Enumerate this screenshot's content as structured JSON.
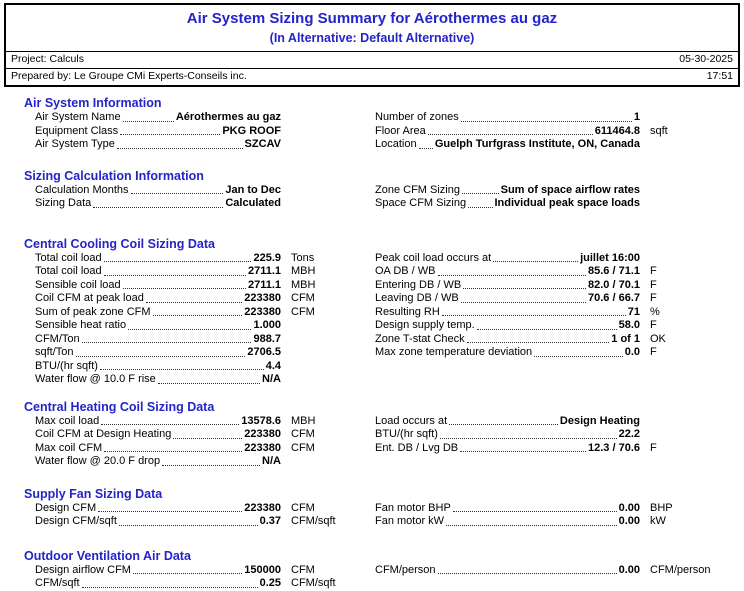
{
  "report": {
    "title": "Air System Sizing Summary for Aérothermes au gaz",
    "subtitle": "(In Alternative: Default Alternative)",
    "project": "Project: Calculs",
    "date": "05-30-2025",
    "prepared_by": "Prepared by: Le Groupe CMi Experts-Conseils inc.",
    "time": "17:51"
  },
  "colors": {
    "accent_blue": "#2424C8",
    "text": "#000000",
    "background": "#FFFFFF"
  },
  "sections": [
    {
      "id": "air-system-information",
      "title": "Air System Information",
      "left": [
        {
          "label": "Air System Name",
          "value": "Aérothermes au gaz",
          "unit": ""
        },
        {
          "label": "Equipment Class",
          "value": "PKG ROOF",
          "unit": ""
        },
        {
          "label": "Air System Type",
          "value": "SZCAV",
          "unit": ""
        }
      ],
      "right": [
        {
          "label": "Number of zones",
          "value": "1",
          "unit": ""
        },
        {
          "label": "Floor Area",
          "value": "611464.8",
          "unit": "sqft"
        },
        {
          "label": "Location",
          "value": "Guelph Turfgrass Institute, ON, Canada",
          "unit": ""
        }
      ]
    },
    {
      "id": "sizing-calculation-information",
      "title": "Sizing Calculation Information",
      "left": [
        {
          "label": "Calculation Months",
          "value": "Jan to Dec",
          "unit": ""
        },
        {
          "label": "Sizing Data",
          "value": "Calculated",
          "unit": ""
        }
      ],
      "right": [
        {
          "label": "Zone CFM Sizing",
          "value": "Sum of space airflow rates",
          "unit": ""
        },
        {
          "label": "Space CFM Sizing",
          "value": "Individual peak space loads",
          "unit": ""
        }
      ]
    },
    {
      "id": "central-cooling-coil-sizing-data",
      "title": "Central Cooling Coil Sizing Data",
      "left": [
        {
          "label": "Total coil load",
          "value": "225.9",
          "unit": "Tons"
        },
        {
          "label": "Total coil load",
          "value": "2711.1",
          "unit": "MBH"
        },
        {
          "label": "Sensible coil load",
          "value": "2711.1",
          "unit": "MBH"
        },
        {
          "label": "Coil CFM at peak load",
          "value": "223380",
          "unit": "CFM"
        },
        {
          "label": "Sum of peak zone CFM",
          "value": "223380",
          "unit": "CFM"
        },
        {
          "label": "Sensible heat ratio",
          "value": "1.000",
          "unit": ""
        },
        {
          "label": "CFM/Ton",
          "value": "988.7",
          "unit": ""
        },
        {
          "label": "sqft/Ton",
          "value": "2706.5",
          "unit": ""
        },
        {
          "label": "BTU/(hr sqft)",
          "value": "4.4",
          "unit": ""
        },
        {
          "label": "Water flow @ 10.0 F rise",
          "value": "N/A",
          "unit": ""
        }
      ],
      "right": [
        {
          "label": "Peak coil load occurs at",
          "value": "juillet 16:00",
          "unit": ""
        },
        {
          "label": "OA DB / WB",
          "value": "85.6 / 71.1",
          "unit": "F"
        },
        {
          "label": "Entering DB / WB",
          "value": "82.0 / 70.1",
          "unit": "F"
        },
        {
          "label": "Leaving DB / WB",
          "value": "70.6 / 66.7",
          "unit": "F"
        },
        {
          "label": "Resulting RH",
          "value": "71",
          "unit": "%"
        },
        {
          "label": "Design supply temp.",
          "value": "58.0",
          "unit": "F"
        },
        {
          "label": "Zone T-stat Check",
          "value": "1 of 1",
          "unit": "OK"
        },
        {
          "label": "Max zone temperature deviation",
          "value": "0.0",
          "unit": "F"
        }
      ]
    },
    {
      "id": "central-heating-coil-sizing-data",
      "title": "Central Heating Coil Sizing Data",
      "left": [
        {
          "label": "Max coil load",
          "value": "13578.6",
          "unit": "MBH"
        },
        {
          "label": "Coil CFM at Design Heating",
          "value": "223380",
          "unit": "CFM"
        },
        {
          "label": "Max coil CFM",
          "value": "223380",
          "unit": "CFM"
        },
        {
          "label": "Water flow @ 20.0 F drop",
          "value": "N/A",
          "unit": ""
        }
      ],
      "right": [
        {
          "label": "Load occurs at",
          "value": "Design Heating",
          "unit": ""
        },
        {
          "label": "BTU/(hr sqft)",
          "value": "22.2",
          "unit": ""
        },
        {
          "label": "Ent. DB / Lvg DB",
          "value": "12.3 / 70.6",
          "unit": "F"
        }
      ]
    },
    {
      "id": "supply-fan-sizing-data",
      "title": "Supply Fan Sizing Data",
      "left": [
        {
          "label": "Design CFM",
          "value": "223380",
          "unit": "CFM"
        },
        {
          "label": "Design CFM/sqft",
          "value": "0.37",
          "unit": "CFM/sqft"
        }
      ],
      "right": [
        {
          "label": "Fan motor BHP",
          "value": "0.00",
          "unit": "BHP"
        },
        {
          "label": "Fan motor kW",
          "value": "0.00",
          "unit": "kW"
        }
      ]
    },
    {
      "id": "outdoor-ventilation-air-data",
      "title": "Outdoor Ventilation Air Data",
      "left": [
        {
          "label": "Design airflow CFM",
          "value": "150000",
          "unit": "CFM"
        },
        {
          "label": "CFM/sqft",
          "value": "0.25",
          "unit": "CFM/sqft"
        }
      ],
      "right": [
        {
          "label": "CFM/person",
          "value": "0.00",
          "unit": "CFM/person"
        }
      ]
    }
  ]
}
